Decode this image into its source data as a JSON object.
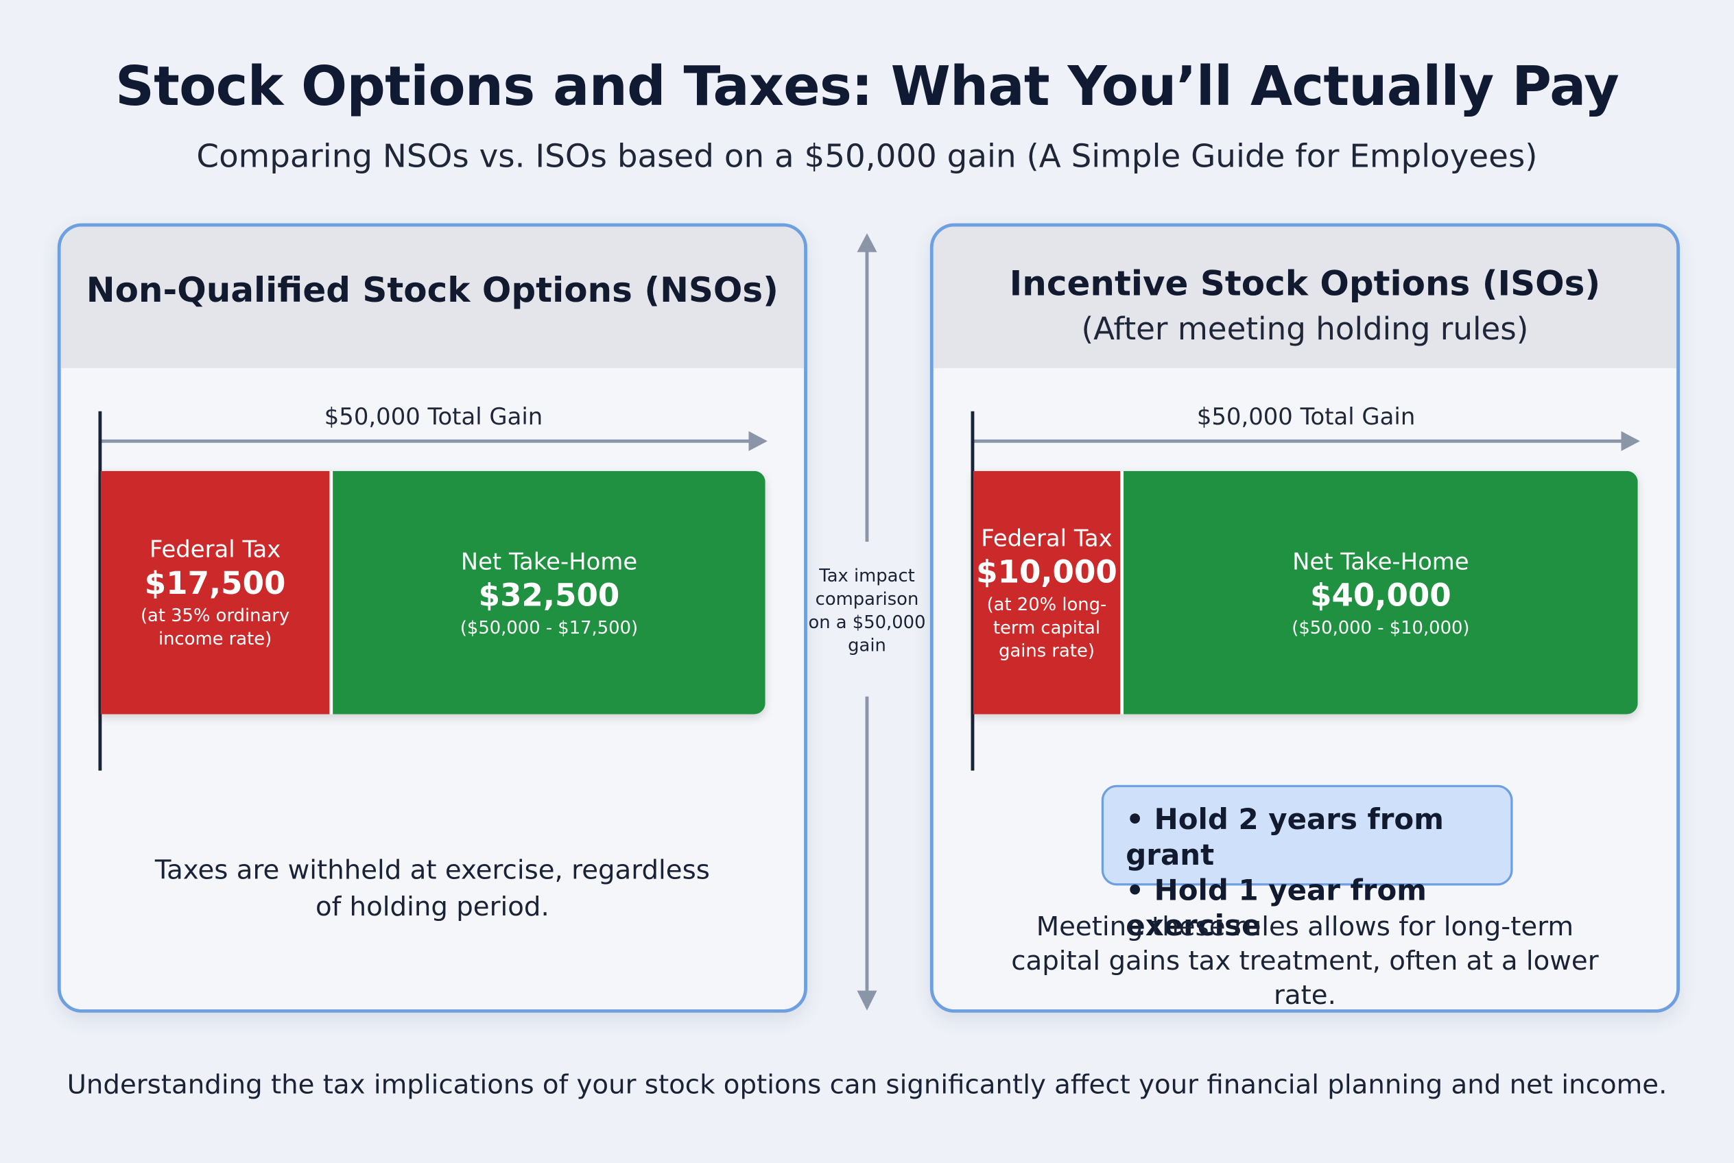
{
  "header": {
    "title": "Stock Options and Taxes: What You’ll Actually Pay",
    "subtitle": "Comparing NSOs vs. ISOs based on a $50,000 gain (A Simple Guide for Employees)"
  },
  "panels": [
    {
      "title": "Non-Qualified Stock Options (NSOs)",
      "gain_label": "$50,000 Total Gain",
      "tax": {
        "label": "Federal Tax",
        "amount": "$17,500",
        "note": "(at 35% ordinary income rate)"
      },
      "net": {
        "label": "Net Take-Home",
        "amount": "$32,500",
        "note": "($50,000 - $17,500)"
      },
      "note": "Taxes are withheld at exercise, regardless of holding period."
    },
    {
      "title": "Incentive Stock Options (ISOs)",
      "subtitle": "(After meeting holding rules)",
      "gain_label": "$50,000 Total Gain",
      "tax": {
        "label": "Federal Tax",
        "amount": "$10,000",
        "note": "(at 20% long-term capital gains rate)"
      },
      "net": {
        "label": "Net Take-Home",
        "amount": "$40,000",
        "note": "($50,000 - $10,000)"
      },
      "rules": [
        "• Hold 2 years from grant",
        "• Hold 1 year from exercise"
      ],
      "note": "Meeting these rules allows for long-term capital gains tax treatment, often at a lower rate."
    }
  ],
  "divider_label": "Tax impact comparison on a $50,000 gain",
  "footer": "Understanding the tax implications of your stock options can significantly affect your financial planning and net income."
}
